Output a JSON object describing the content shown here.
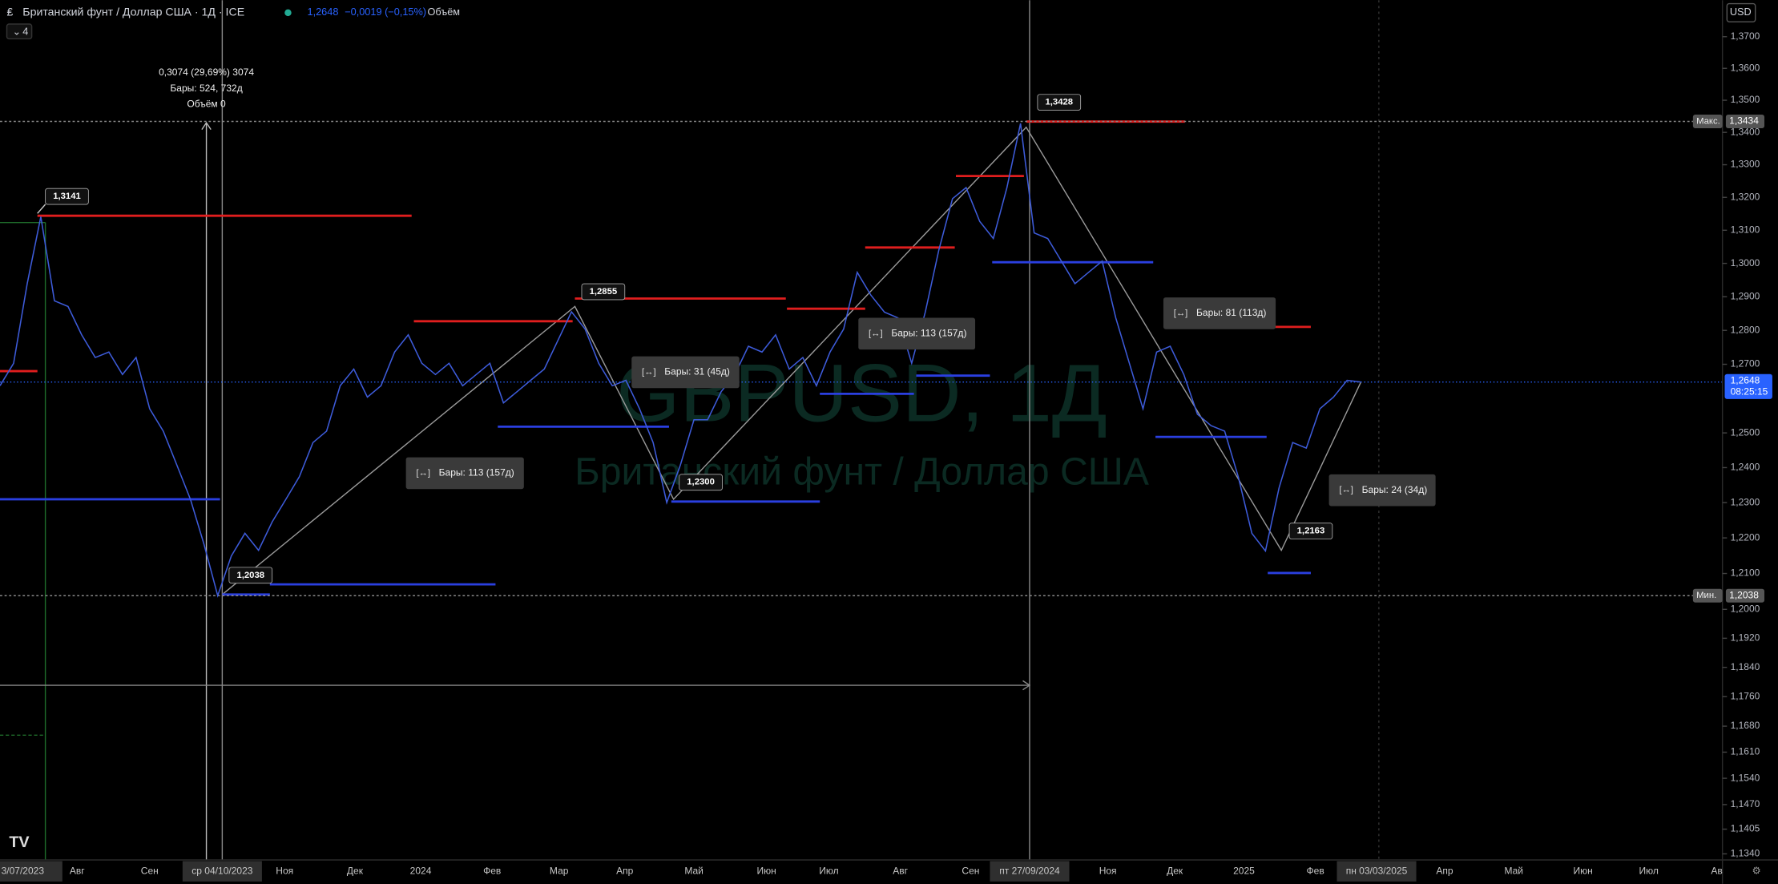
{
  "header": {
    "symbol_title": "Британский фунт / Доллар США · 1Д · ICE",
    "last_price": "1,2648",
    "change": "−0,0019 (−0,15%)",
    "volume_label": "Объём",
    "indicators_count": "4"
  },
  "watermark": {
    "symbol": "GBPUSD, 1Д",
    "description": "Британский фунт / Доллар США"
  },
  "chart_data": {
    "type": "line",
    "color": "#3d5bd9",
    "log_scale": true,
    "values": [
      1.2637,
      1.2703,
      1.2939,
      1.3141,
      1.2888,
      1.2871,
      1.2787,
      1.272,
      1.2736,
      1.267,
      1.272,
      1.257,
      1.2505,
      1.2407,
      1.2309,
      1.2181,
      1.2038,
      1.2149,
      1.2213,
      1.2165,
      1.2245,
      1.2309,
      1.2374,
      1.2472,
      1.2505,
      1.2637,
      1.2686,
      1.2604,
      1.2637,
      1.2736,
      1.2787,
      1.2703,
      1.267,
      1.2703,
      1.2637,
      1.267,
      1.2703,
      1.2587,
      1.262,
      1.2653,
      1.2686,
      1.277,
      1.2855,
      1.2804,
      1.2703,
      1.2637,
      1.2653,
      1.257,
      1.2472,
      1.23,
      1.2407,
      1.2538,
      1.2538,
      1.262,
      1.267,
      1.2753,
      1.2736,
      1.2787,
      1.2686,
      1.272,
      1.2637,
      1.2736,
      1.2804,
      1.2973,
      1.2905,
      1.2854,
      1.2837,
      1.2703,
      1.2854,
      1.3041,
      1.3196,
      1.323,
      1.3127,
      1.3075,
      1.323,
      1.3428,
      1.3092,
      1.3075,
      1.3007,
      1.2939,
      1.2973,
      1.3007,
      1.2837,
      1.2703,
      1.257,
      1.2736,
      1.2753,
      1.267,
      1.2554,
      1.2521,
      1.2505,
      1.2374,
      1.2213,
      1.2163,
      1.2342,
      1.2472,
      1.2456,
      1.257,
      1.2604,
      1.2653,
      1.2648
    ],
    "ylim": [
      1.1327,
      1.3816
    ],
    "yticks": [
      {
        "value": 1.37,
        "label": "1,3700"
      },
      {
        "value": 1.36,
        "label": "1,3600"
      },
      {
        "value": 1.35,
        "label": "1,3500"
      },
      {
        "value": 1.34,
        "label": "1,3400"
      },
      {
        "value": 1.33,
        "label": "1,3300"
      },
      {
        "value": 1.32,
        "label": "1,3200"
      },
      {
        "value": 1.31,
        "label": "1,3100"
      },
      {
        "value": 1.3,
        "label": "1,3000"
      },
      {
        "value": 1.29,
        "label": "1,2900"
      },
      {
        "value": 1.28,
        "label": "1,2800"
      },
      {
        "value": 1.27,
        "label": "1,2700"
      },
      {
        "value": 1.25,
        "label": "1,2500"
      },
      {
        "value": 1.24,
        "label": "1,2400"
      },
      {
        "value": 1.23,
        "label": "1,2300"
      },
      {
        "value": 1.22,
        "label": "1,2200"
      },
      {
        "value": 1.21,
        "label": "1,2100"
      },
      {
        "value": 1.2,
        "label": "1,2000"
      },
      {
        "value": 1.192,
        "label": "1,1920"
      },
      {
        "value": 1.184,
        "label": "1,1840"
      },
      {
        "value": 1.176,
        "label": "1,1760"
      },
      {
        "value": 1.168,
        "label": "1,1680"
      },
      {
        "value": 1.161,
        "label": "1,1610"
      },
      {
        "value": 1.154,
        "label": "1,1540"
      },
      {
        "value": 1.147,
        "label": "1,1470"
      },
      {
        "value": 1.1405,
        "label": "1,1405"
      },
      {
        "value": 1.134,
        "label": "1,1340"
      }
    ]
  },
  "price_axis": {
    "currency": "USD",
    "max_label": "Макс.",
    "max_value": {
      "value": 1.3434,
      "label": "1,3434"
    },
    "min_label": "Мин.",
    "min_value": {
      "value": 1.2038,
      "label": "1,2038"
    },
    "current_price": {
      "value": 1.2648,
      "label": "1,2648"
    },
    "countdown": "08:25:15"
  },
  "time_axis": {
    "labels": [
      "3/07/2023",
      "Авг",
      "Сен",
      "ср 04/10/2023",
      "Ноя",
      "Дек",
      "2024",
      "Фев",
      "Мар",
      "Апр",
      "Май",
      "Июн",
      "Июл",
      "Авг",
      "Сен",
      "пт 27/09/2024",
      "Ноя",
      "Дек",
      "2025",
      "Фев",
      "пн 03/03/2025",
      "Апр",
      "Май",
      "Июн",
      "Июл",
      "Ав"
    ]
  },
  "annotations": {
    "price_callouts": [
      "1,3141",
      "1,2855",
      "1,2300",
      "1,2038",
      "1,3428",
      "1,2163"
    ],
    "bar_ranges": [
      "Бары: 113 (157д)",
      "Бары: 31 (45д)",
      "Бары: 113 (157д)",
      "Бары: 81 (113д)",
      "Бары: 24 (34д)"
    ],
    "measure": [
      "0,3074 (29,69%) 3074",
      "Бары: 524, 732д",
      "Объём 0"
    ]
  }
}
